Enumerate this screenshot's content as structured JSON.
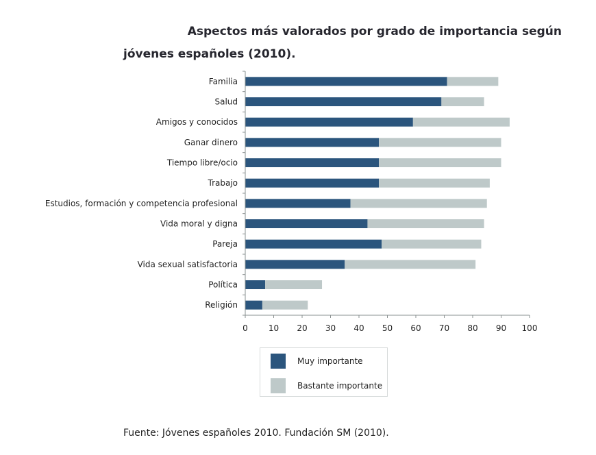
{
  "chart_data": {
    "type": "bar",
    "orientation": "horizontal",
    "stacked": true,
    "title": "Aspectos más valorados por grado de importancia según jóvenes españoles (2010).",
    "title_lines": [
      "Aspectos más valorados por grado de importancia según",
      "jóvenes españoles (2010)."
    ],
    "xlabel": "",
    "ylabel": "",
    "xlim": [
      0,
      100
    ],
    "xticks": [
      0,
      10,
      20,
      30,
      40,
      50,
      60,
      70,
      80,
      90,
      100
    ],
    "grid": false,
    "legend_position": "bottom-left",
    "categories": [
      "Familia",
      "Salud",
      "Amigos y conocidos",
      "Ganar dinero",
      "Tiempo libre/ocio",
      "Trabajo",
      "Estudios, formación y competencia profesional",
      "Vida moral y digna",
      "Pareja",
      "Vida sexual satisfactoria",
      "Política",
      "Religión"
    ],
    "series": [
      {
        "name": "Muy importante",
        "color": "#2b557d",
        "values": [
          71,
          69,
          59,
          47,
          47,
          47,
          37,
          43,
          48,
          35,
          7,
          6
        ]
      },
      {
        "name": "Bastante importante",
        "color": "#bec9c9",
        "values": [
          18,
          15,
          34,
          43,
          43,
          39,
          48,
          41,
          35,
          46,
          20,
          16
        ]
      }
    ]
  },
  "legend": {
    "items": [
      {
        "label": "Muy importante",
        "color": "#2b557d"
      },
      {
        "label": "Bastante importante",
        "color": "#bec9c9"
      }
    ]
  },
  "source": "Fuente: Jóvenes españoles 2010. Fundación SM (2010)."
}
